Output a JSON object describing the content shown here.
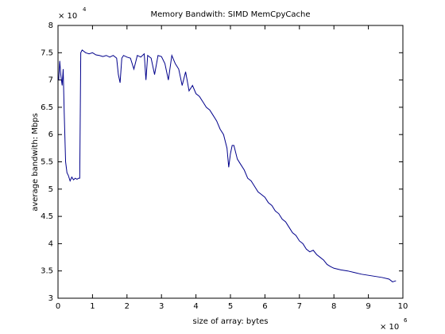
{
  "chart_data": {
    "type": "line",
    "title": "Memory Bandwith: SIMD MemCpyCache",
    "xlabel": "size of array: bytes",
    "ylabel": "average bandwith: Mbps",
    "x_multiplier": {
      "base": "× 10",
      "exponent": "6"
    },
    "y_multiplier": {
      "base": "× 10",
      "exponent": "4"
    },
    "color": "#00008b",
    "xlim": [
      0,
      10
    ],
    "ylim": [
      3,
      8
    ],
    "xticks": [
      0,
      1,
      2,
      3,
      4,
      5,
      6,
      7,
      8,
      9,
      10
    ],
    "yticks": [
      3,
      3.5,
      4,
      4.5,
      5,
      5.5,
      6,
      6.5,
      7,
      7.5,
      8
    ],
    "x": [
      0.02,
      0.05,
      0.08,
      0.12,
      0.15,
      0.18,
      0.22,
      0.26,
      0.3,
      0.35,
      0.4,
      0.45,
      0.5,
      0.55,
      0.6,
      0.63,
      0.66,
      0.7,
      0.8,
      0.9,
      1.0,
      1.1,
      1.2,
      1.3,
      1.4,
      1.5,
      1.6,
      1.7,
      1.75,
      1.8,
      1.85,
      1.9,
      2.0,
      2.1,
      2.2,
      2.3,
      2.4,
      2.5,
      2.55,
      2.6,
      2.7,
      2.8,
      2.9,
      3.0,
      3.1,
      3.2,
      3.3,
      3.4,
      3.5,
      3.6,
      3.7,
      3.8,
      3.9,
      4.0,
      4.1,
      4.2,
      4.3,
      4.4,
      4.5,
      4.6,
      4.7,
      4.8,
      4.9,
      4.95,
      5.0,
      5.05,
      5.1,
      5.2,
      5.3,
      5.4,
      5.5,
      5.6,
      5.7,
      5.8,
      5.9,
      6.0,
      6.1,
      6.2,
      6.3,
      6.4,
      6.5,
      6.6,
      6.7,
      6.8,
      6.9,
      7.0,
      7.1,
      7.2,
      7.3,
      7.4,
      7.5,
      7.6,
      7.7,
      7.8,
      7.9,
      8.0,
      8.2,
      8.4,
      8.6,
      8.8,
      9.0,
      9.2,
      9.4,
      9.6,
      9.7,
      9.8
    ],
    "values": [
      7.0,
      7.35,
      7.1,
      6.9,
      7.2,
      6.4,
      5.5,
      5.3,
      5.25,
      5.15,
      5.22,
      5.17,
      5.2,
      5.18,
      5.2,
      5.2,
      7.5,
      7.55,
      7.5,
      7.48,
      7.5,
      7.46,
      7.45,
      7.43,
      7.45,
      7.42,
      7.45,
      7.4,
      7.1,
      6.95,
      7.4,
      7.45,
      7.42,
      7.4,
      7.2,
      7.45,
      7.42,
      7.48,
      7.0,
      7.45,
      7.4,
      7.1,
      7.45,
      7.43,
      7.3,
      7.0,
      7.45,
      7.3,
      7.2,
      6.9,
      7.15,
      6.8,
      6.9,
      6.75,
      6.7,
      6.6,
      6.5,
      6.45,
      6.35,
      6.25,
      6.1,
      6.0,
      5.75,
      5.4,
      5.65,
      5.8,
      5.8,
      5.55,
      5.45,
      5.35,
      5.2,
      5.15,
      5.05,
      4.95,
      4.9,
      4.85,
      4.75,
      4.7,
      4.6,
      4.55,
      4.45,
      4.4,
      4.3,
      4.2,
      4.15,
      4.05,
      4.0,
      3.9,
      3.85,
      3.88,
      3.8,
      3.75,
      3.7,
      3.62,
      3.58,
      3.55,
      3.52,
      3.5,
      3.47,
      3.44,
      3.42,
      3.4,
      3.38,
      3.35,
      3.3,
      3.32
    ]
  }
}
